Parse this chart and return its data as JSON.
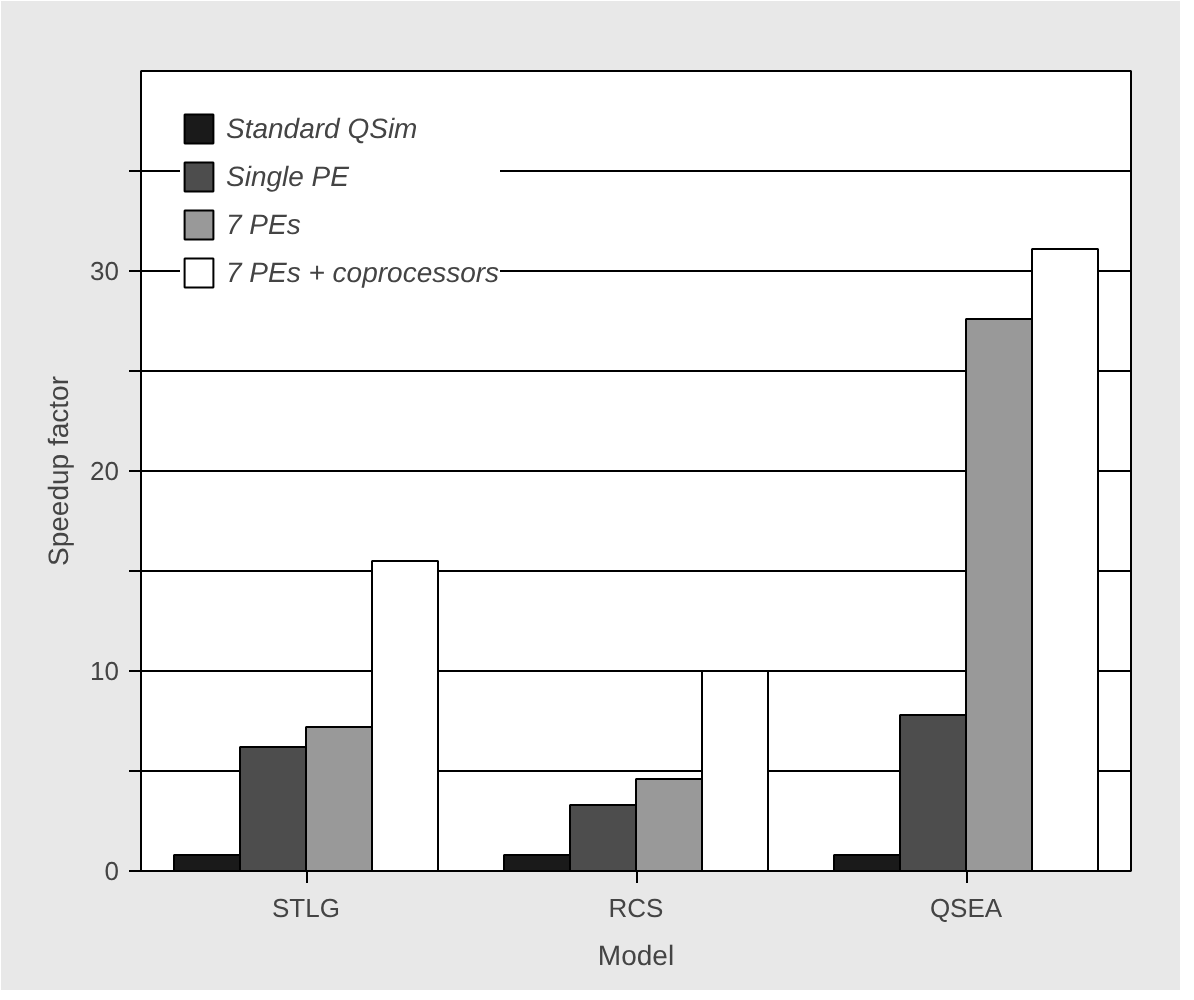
{
  "chart_data": {
    "type": "bar",
    "xlabel": "Model",
    "ylabel": "Speedup factor",
    "categories": [
      "STLG",
      "RCS",
      "QSEA"
    ],
    "series": [
      {
        "name": "Standard QSim",
        "color": "#1a1a1a",
        "values": [
          0.8,
          0.8,
          0.8
        ]
      },
      {
        "name": "Single PE",
        "color": "#4d4d4d",
        "values": [
          6.2,
          3.3,
          7.8
        ]
      },
      {
        "name": "7 PEs",
        "color": "#999999",
        "values": [
          7.2,
          4.6,
          27.6
        ]
      },
      {
        "name": "7 PEs + coprocessors",
        "color": "#ffffff",
        "values": [
          15.5,
          10.0,
          31.1
        ]
      }
    ],
    "ylim": [
      0,
      40
    ],
    "yticks": [
      0,
      {
        "value": 5,
        "label": null
      },
      10,
      {
        "value": 15,
        "label": null
      },
      20,
      {
        "value": 25,
        "label": null
      },
      30,
      {
        "value": 35,
        "label": null
      }
    ],
    "grid": "y",
    "legend": "top left"
  }
}
